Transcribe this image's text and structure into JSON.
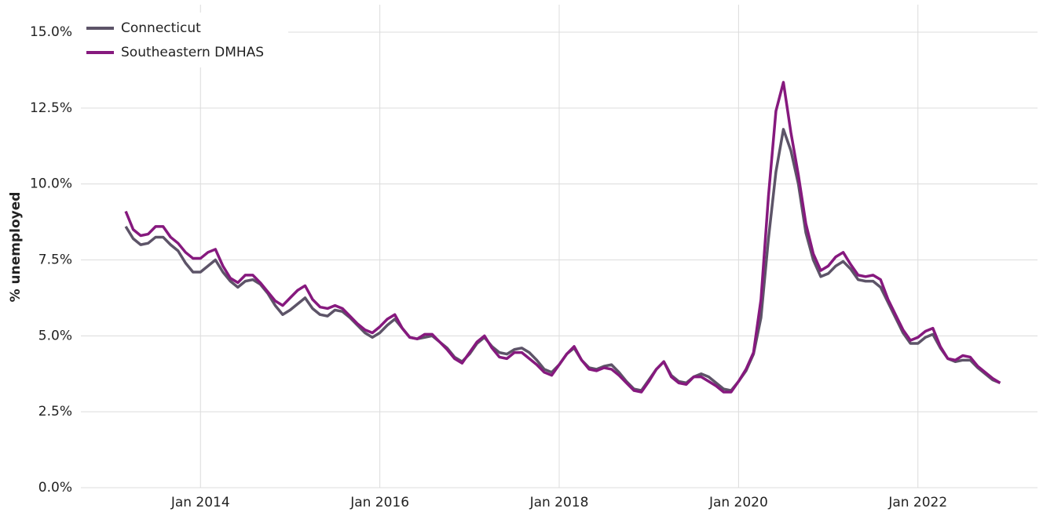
{
  "chart_data": {
    "type": "line",
    "y_label": "% unemployed",
    "x": [
      "2013-03",
      "2013-04",
      "2013-05",
      "2013-06",
      "2013-07",
      "2013-08",
      "2013-09",
      "2013-10",
      "2013-11",
      "2013-12",
      "2014-01",
      "2014-02",
      "2014-03",
      "2014-04",
      "2014-05",
      "2014-06",
      "2014-07",
      "2014-08",
      "2014-09",
      "2014-10",
      "2014-11",
      "2014-12",
      "2015-01",
      "2015-02",
      "2015-03",
      "2015-04",
      "2015-05",
      "2015-06",
      "2015-07",
      "2015-08",
      "2015-09",
      "2015-10",
      "2015-11",
      "2015-12",
      "2016-01",
      "2016-02",
      "2016-03",
      "2016-04",
      "2016-05",
      "2016-06",
      "2016-07",
      "2016-08",
      "2016-09",
      "2016-10",
      "2016-11",
      "2016-12",
      "2017-01",
      "2017-02",
      "2017-03",
      "2017-04",
      "2017-05",
      "2017-06",
      "2017-07",
      "2017-08",
      "2017-09",
      "2017-10",
      "2017-11",
      "2017-12",
      "2018-01",
      "2018-02",
      "2018-03",
      "2018-04",
      "2018-05",
      "2018-06",
      "2018-07",
      "2018-08",
      "2018-09",
      "2018-10",
      "2018-11",
      "2018-12",
      "2019-01",
      "2019-02",
      "2019-03",
      "2019-04",
      "2019-05",
      "2019-06",
      "2019-07",
      "2019-08",
      "2019-09",
      "2019-10",
      "2019-11",
      "2019-12",
      "2020-01",
      "2020-02",
      "2020-03",
      "2020-04",
      "2020-05",
      "2020-06",
      "2020-07",
      "2020-08",
      "2020-09",
      "2020-10",
      "2020-11",
      "2020-12",
      "2021-01",
      "2021-02",
      "2021-03",
      "2021-04",
      "2021-05",
      "2021-06",
      "2021-07",
      "2021-08",
      "2021-09",
      "2021-10",
      "2021-11",
      "2021-12",
      "2022-01",
      "2022-02",
      "2022-03",
      "2022-04",
      "2022-05",
      "2022-06",
      "2022-07",
      "2022-08",
      "2022-09",
      "2022-10",
      "2022-11",
      "2022-12"
    ],
    "series": [
      {
        "name": "Connecticut",
        "color": "#5d5468",
        "values": [
          8.6,
          8.2,
          8.0,
          8.05,
          8.25,
          8.25,
          8.0,
          7.8,
          7.4,
          7.1,
          7.1,
          7.3,
          7.5,
          7.1,
          6.8,
          6.6,
          6.8,
          6.85,
          6.7,
          6.4,
          6.0,
          5.7,
          5.85,
          6.05,
          6.25,
          5.9,
          5.7,
          5.65,
          5.85,
          5.8,
          5.6,
          5.35,
          5.1,
          4.95,
          5.1,
          5.35,
          5.55,
          5.25,
          4.95,
          4.9,
          4.95,
          5.0,
          4.8,
          4.6,
          4.3,
          4.15,
          4.4,
          4.75,
          4.95,
          4.65,
          4.45,
          4.4,
          4.55,
          4.6,
          4.45,
          4.2,
          3.9,
          3.8,
          4.05,
          4.4,
          4.6,
          4.2,
          3.95,
          3.9,
          4.0,
          4.05,
          3.8,
          3.5,
          3.25,
          3.2,
          3.55,
          3.9,
          4.15,
          3.7,
          3.5,
          3.45,
          3.65,
          3.75,
          3.65,
          3.45,
          3.25,
          3.2,
          3.5,
          3.85,
          4.4,
          5.6,
          8.2,
          10.4,
          11.8,
          11.1,
          10.0,
          8.4,
          7.5,
          6.95,
          7.05,
          7.3,
          7.45,
          7.2,
          6.85,
          6.8,
          6.8,
          6.6,
          6.1,
          5.6,
          5.1,
          4.75,
          4.75,
          4.95,
          5.05,
          4.6,
          4.25,
          4.15,
          4.2,
          4.2,
          3.95,
          3.75,
          3.55,
          3.45
        ]
      },
      {
        "name": "Southeastern DMHAS",
        "color": "#86197e",
        "values": [
          9.1,
          8.5,
          8.3,
          8.35,
          8.6,
          8.6,
          8.25,
          8.05,
          7.75,
          7.55,
          7.55,
          7.75,
          7.85,
          7.3,
          6.9,
          6.75,
          7.0,
          7.0,
          6.75,
          6.45,
          6.15,
          6.0,
          6.25,
          6.5,
          6.65,
          6.2,
          5.95,
          5.9,
          6.0,
          5.9,
          5.65,
          5.4,
          5.2,
          5.1,
          5.3,
          5.55,
          5.7,
          5.25,
          4.95,
          4.9,
          5.05,
          5.05,
          4.8,
          4.55,
          4.25,
          4.1,
          4.45,
          4.8,
          5.0,
          4.6,
          4.3,
          4.25,
          4.45,
          4.45,
          4.25,
          4.05,
          3.8,
          3.7,
          4.05,
          4.4,
          4.65,
          4.2,
          3.9,
          3.85,
          3.95,
          3.9,
          3.7,
          3.45,
          3.2,
          3.15,
          3.5,
          3.9,
          4.15,
          3.65,
          3.45,
          3.4,
          3.65,
          3.65,
          3.5,
          3.35,
          3.15,
          3.15,
          3.5,
          3.9,
          4.45,
          6.2,
          9.6,
          12.4,
          13.35,
          11.7,
          10.3,
          8.7,
          7.7,
          7.15,
          7.3,
          7.6,
          7.75,
          7.35,
          7.0,
          6.95,
          7.0,
          6.85,
          6.2,
          5.7,
          5.2,
          4.85,
          4.95,
          5.15,
          5.25,
          4.65,
          4.25,
          4.2,
          4.35,
          4.3,
          4.0,
          3.8,
          3.6,
          3.45
        ]
      }
    ],
    "xlim": [
      "2012-09",
      "2023-05"
    ],
    "xticks": [
      {
        "value": "2014-01",
        "label": "Jan 2014"
      },
      {
        "value": "2016-01",
        "label": "Jan 2016"
      },
      {
        "value": "2018-01",
        "label": "Jan 2018"
      },
      {
        "value": "2020-01",
        "label": "Jan 2020"
      },
      {
        "value": "2022-01",
        "label": "Jan 2022"
      }
    ],
    "ylim": [
      0,
      15.8
    ],
    "yticks": [
      {
        "value": 0,
        "label": "0.0%"
      },
      {
        "value": 2.5,
        "label": "2.5%"
      },
      {
        "value": 5,
        "label": "5.0%"
      },
      {
        "value": 7.5,
        "label": "7.5%"
      },
      {
        "value": 10,
        "label": "10.0%"
      },
      {
        "value": 12.5,
        "label": "12.5%"
      },
      {
        "value": 15,
        "label": "15.0%"
      }
    ],
    "grid": true,
    "legend": "top-left"
  }
}
